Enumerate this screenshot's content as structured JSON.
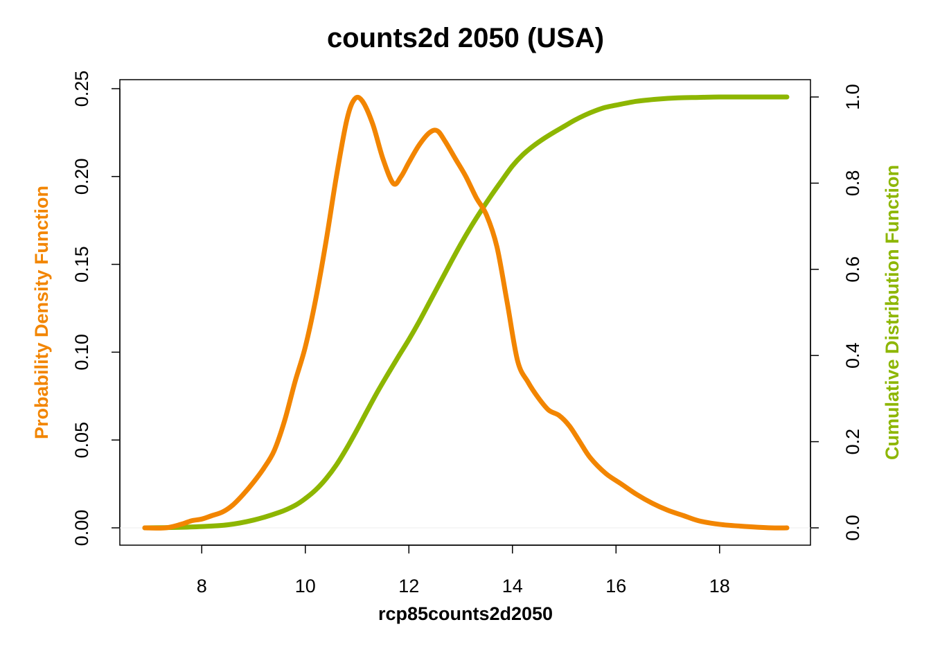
{
  "chart_data": {
    "type": "line",
    "title": "counts2d 2050 (USA)",
    "xlabel": "rcp85counts2d2050",
    "ylabel_left": "Probability Density Function",
    "ylabel_right": "Cumulative Distribution Function",
    "xlim": [
      6.9,
      19.3
    ],
    "ylim_left": [
      0,
      0.25
    ],
    "ylim_right": [
      0,
      1.0
    ],
    "x_ticks": [
      "8",
      "10",
      "12",
      "14",
      "16",
      "18"
    ],
    "y_left_ticks": [
      "0.00",
      "0.05",
      "0.10",
      "0.15",
      "0.20",
      "0.25"
    ],
    "y_right_ticks": [
      "0.0",
      "0.2",
      "0.4",
      "0.6",
      "0.8",
      "1.0"
    ],
    "grid": false,
    "colors": {
      "pdf": "#F28500",
      "cdf": "#8DB600"
    },
    "series": [
      {
        "axis": "left",
        "x": [
          6.9,
          7.3,
          7.6,
          7.8,
          8.0,
          8.2,
          8.4,
          8.6,
          8.8,
          9.0,
          9.2,
          9.4,
          9.6,
          9.8,
          10.0,
          10.2,
          10.4,
          10.6,
          10.8,
          10.95,
          11.1,
          11.3,
          11.5,
          11.7,
          11.85,
          12.0,
          12.2,
          12.4,
          12.55,
          12.7,
          12.9,
          13.1,
          13.3,
          13.5,
          13.7,
          13.9,
          14.1,
          14.3,
          14.5,
          14.7,
          14.9,
          15.1,
          15.3,
          15.5,
          15.8,
          16.1,
          16.4,
          16.7,
          17.0,
          17.3,
          17.6,
          18.0,
          18.4,
          19.0,
          19.3
        ],
        "values": [
          0.0,
          0.0,
          0.002,
          0.004,
          0.005,
          0.007,
          0.009,
          0.013,
          0.019,
          0.026,
          0.034,
          0.044,
          0.061,
          0.083,
          0.103,
          0.13,
          0.163,
          0.2,
          0.232,
          0.244,
          0.243,
          0.23,
          0.21,
          0.196,
          0.2,
          0.208,
          0.218,
          0.225,
          0.226,
          0.22,
          0.21,
          0.2,
          0.188,
          0.178,
          0.16,
          0.128,
          0.095,
          0.083,
          0.074,
          0.067,
          0.064,
          0.058,
          0.049,
          0.04,
          0.031,
          0.025,
          0.019,
          0.014,
          0.01,
          0.007,
          0.004,
          0.002,
          0.001,
          0.0,
          0.0
        ]
      },
      {
        "axis": "right",
        "x": [
          6.9,
          7.5,
          8.0,
          8.5,
          9.0,
          9.5,
          9.8,
          10.0,
          10.2,
          10.4,
          10.6,
          10.8,
          11.0,
          11.2,
          11.4,
          11.6,
          11.8,
          12.0,
          12.2,
          12.4,
          12.6,
          12.8,
          13.0,
          13.2,
          13.4,
          13.6,
          13.8,
          14.0,
          14.2,
          14.4,
          14.6,
          14.8,
          15.0,
          15.2,
          15.4,
          15.6,
          15.8,
          16.0,
          16.4,
          16.8,
          17.2,
          17.6,
          18.0,
          18.5,
          19.3
        ],
        "values": [
          0.0,
          0.001,
          0.003,
          0.007,
          0.018,
          0.036,
          0.052,
          0.068,
          0.088,
          0.114,
          0.146,
          0.185,
          0.228,
          0.273,
          0.317,
          0.358,
          0.398,
          0.437,
          0.479,
          0.524,
          0.569,
          0.614,
          0.658,
          0.699,
          0.737,
          0.773,
          0.807,
          0.84,
          0.866,
          0.886,
          0.903,
          0.918,
          0.932,
          0.946,
          0.958,
          0.968,
          0.976,
          0.981,
          0.99,
          0.995,
          0.998,
          0.999,
          1.0,
          1.0,
          1.0
        ]
      }
    ]
  }
}
